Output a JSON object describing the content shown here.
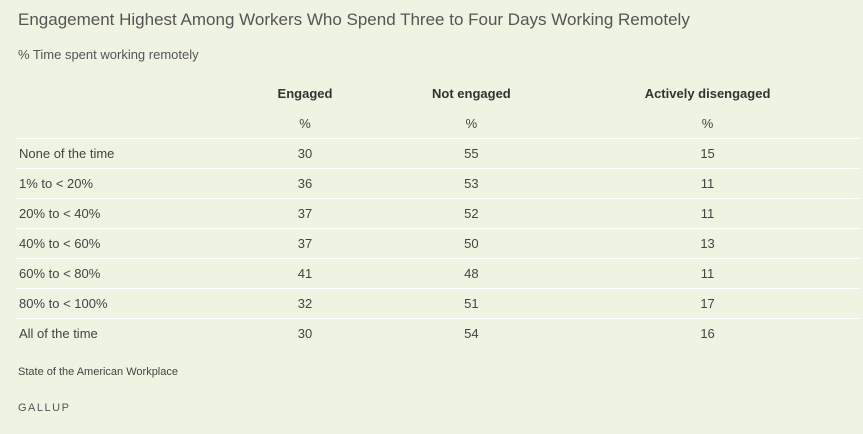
{
  "chart_data": {
    "type": "table",
    "title": "Engagement Highest Among Workers Who Spend Three to Four Days Working Remotely",
    "subtitle": "% Time spent working remotely",
    "columns": [
      "Engaged",
      "Not engaged",
      "Actively disengaged"
    ],
    "units": [
      "%",
      "%",
      "%"
    ],
    "rows": [
      {
        "label": "None of the time",
        "values": [
          "30",
          "55",
          "15"
        ]
      },
      {
        "label": "1% to < 20%",
        "values": [
          "36",
          "53",
          "11"
        ]
      },
      {
        "label": "20% to < 40%",
        "values": [
          "37",
          "52",
          "11"
        ]
      },
      {
        "label": "40% to < 60%",
        "values": [
          "37",
          "50",
          "13"
        ]
      },
      {
        "label": "60% to < 80%",
        "values": [
          "41",
          "48",
          "11"
        ]
      },
      {
        "label": "80% to < 100%",
        "values": [
          "32",
          "51",
          "17"
        ]
      },
      {
        "label": "All of the time",
        "values": [
          "30",
          "54",
          "16"
        ]
      }
    ],
    "source": "State of the American Workplace",
    "brand": "GALLUP"
  },
  "colors": {
    "background": "#eef3e2",
    "row_divider": "#ffffff",
    "text": "#444444"
  }
}
